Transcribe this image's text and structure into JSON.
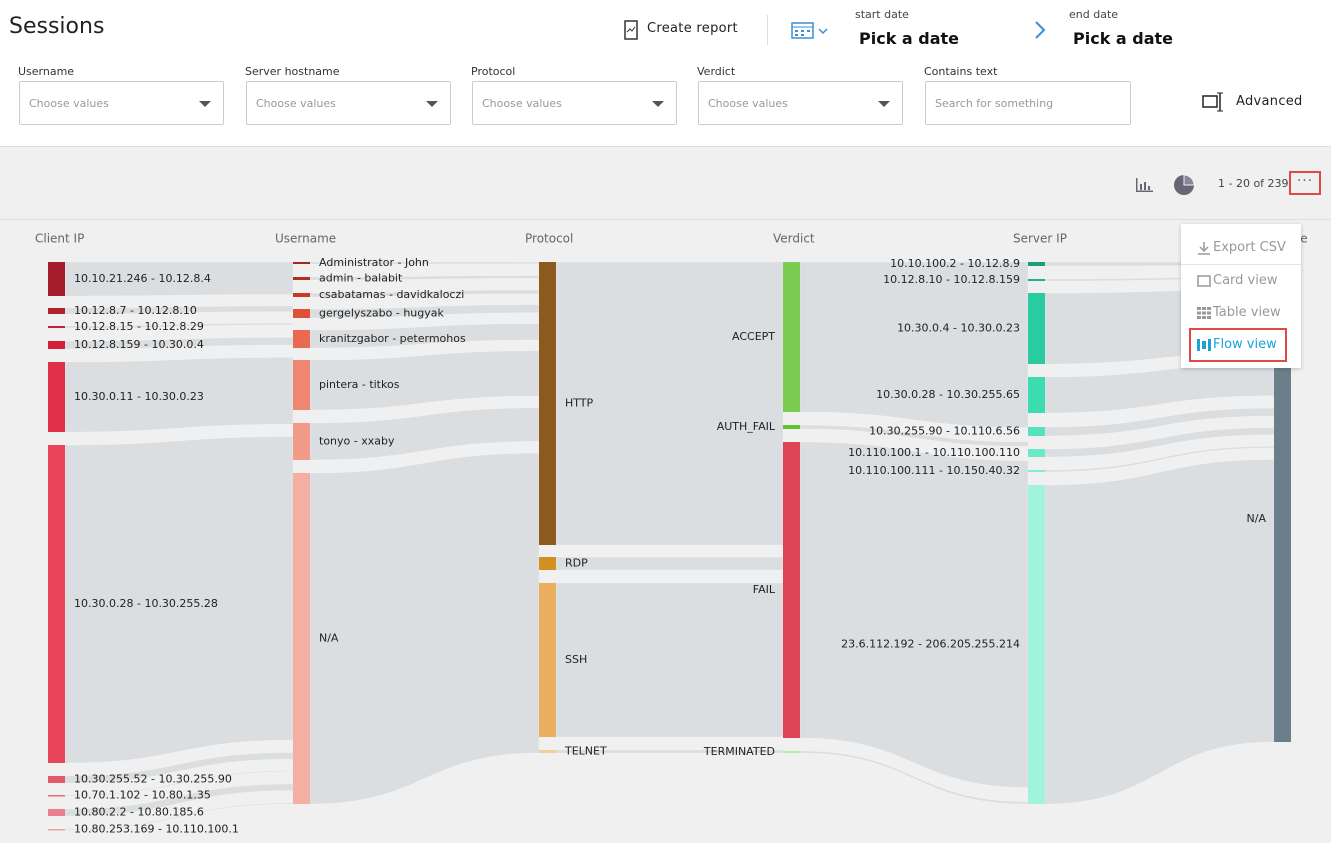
{
  "header": {
    "title": "Sessions",
    "create_report": "Create report",
    "start_date_label": "start date",
    "start_date_value": "Pick a date",
    "end_date_label": "end date",
    "end_date_value": "Pick a date",
    "advanced": "Advanced"
  },
  "filters": [
    {
      "label": "Username",
      "placeholder": "Choose values"
    },
    {
      "label": "Server hostname",
      "placeholder": "Choose values"
    },
    {
      "label": "Protocol",
      "placeholder": "Choose values"
    },
    {
      "label": "Verdict",
      "placeholder": "Choose values"
    },
    {
      "label": "Contains text",
      "placeholder": "Search for something"
    }
  ],
  "pagination": "1 - 20 of 239",
  "menu": [
    "Export CSV",
    "Card view",
    "Table view",
    "Flow view"
  ],
  "flow": {
    "columns": [
      {
        "title": "Client IP",
        "nodes": [
          "10.10.21.246 - 10.12.8.4",
          "10.12.8.7 - 10.12.8.10",
          "10.12.8.15 - 10.12.8.29",
          "10.12.8.159 - 10.30.0.4",
          "10.30.0.11 - 10.30.0.23",
          "10.30.0.28 - 10.30.255.28",
          "10.30.255.52 - 10.30.255.90",
          "10.70.1.102 - 10.80.1.35",
          "10.80.2.2 - 10.80.185.6",
          "10.80.253.169 - 10.110.100.1"
        ]
      },
      {
        "title": "Username",
        "nodes": [
          "Administrator - John",
          "admin - balabit",
          "csabatamas - davidkaloczi",
          "gergelyszabo - hugyak",
          "kranitzgabor - petermohos",
          "pintera - titkos",
          "tonyo - xxaby",
          "N/A"
        ]
      },
      {
        "title": "Protocol",
        "nodes": [
          "HTTP",
          "RDP",
          "SSH",
          "TELNET"
        ]
      },
      {
        "title": "Verdict",
        "nodes": [
          "ACCEPT",
          "AUTH_FAIL",
          "FAIL",
          "TERMINATED"
        ]
      },
      {
        "title": "Server IP",
        "nodes": [
          "10.10.100.2 - 10.12.8.9",
          "10.12.8.10 - 10.12.8.159",
          "10.30.0.4 - 10.30.0.23",
          "10.30.0.28 - 10.30.255.65",
          "10.30.255.90 - 10.110.6.56",
          "10.110.100.1 - 10.110.100.110",
          "10.110.100.111 - 10.150.40.32",
          "23.6.112.192 - 206.205.255.214"
        ]
      },
      {
        "title": "Score",
        "nodes": [
          "N/A"
        ]
      }
    ]
  }
}
